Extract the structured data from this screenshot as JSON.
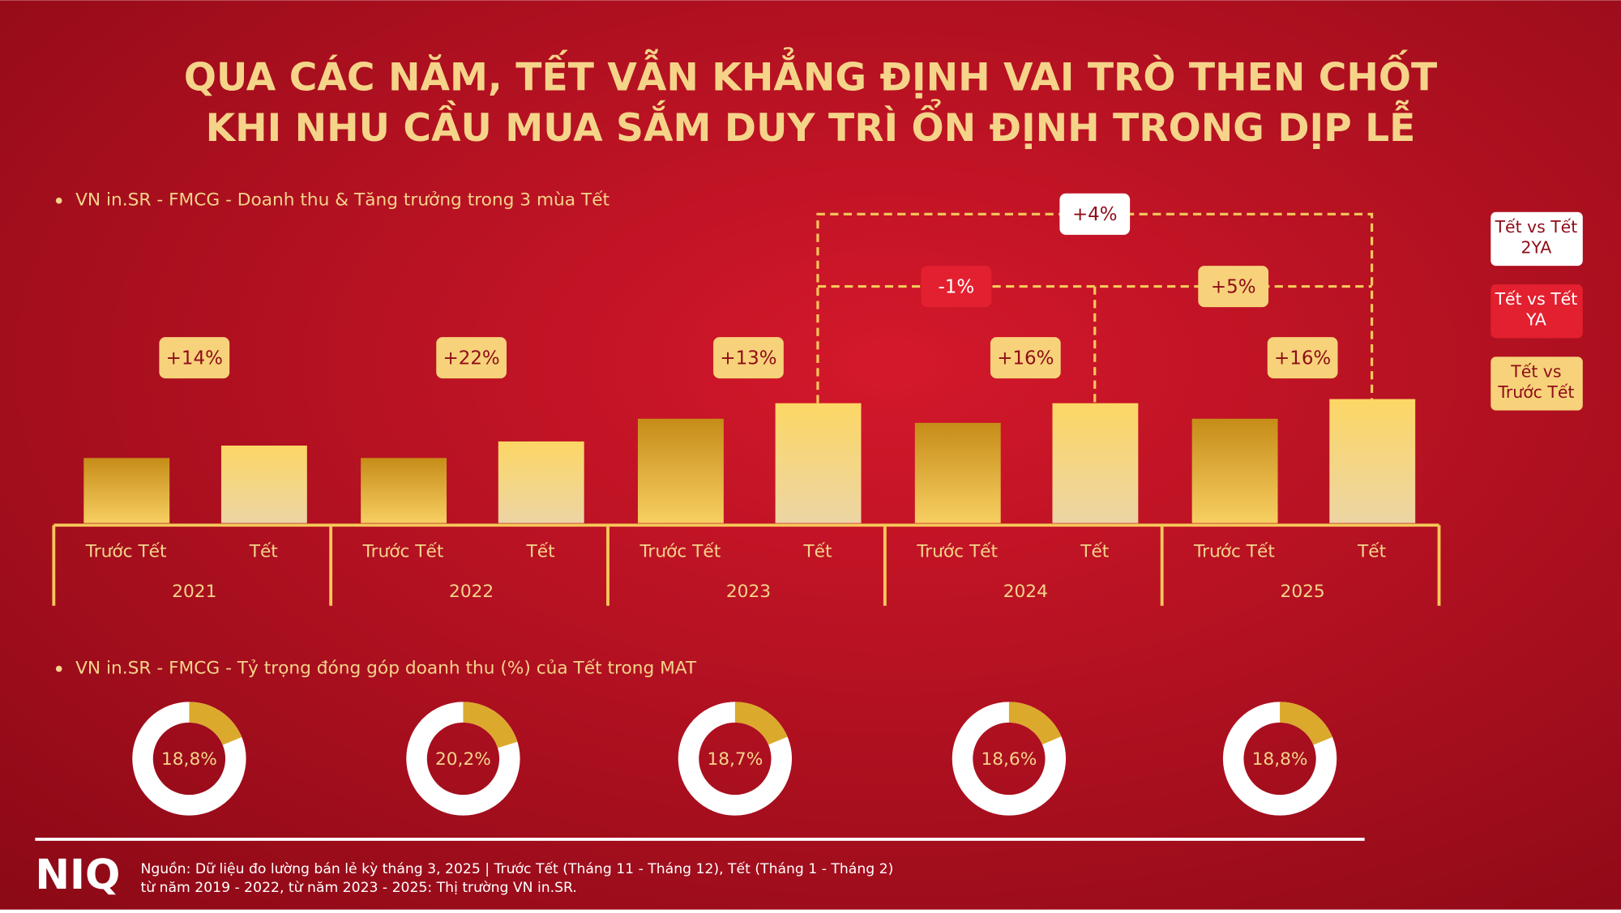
{
  "title": [
    "QUA CÁC NĂM, TẾT VẪN KHẲNG ĐỊNH VAI TRÒ THEN CHỐT",
    "KHI NHU CẦU MUA SẮM DUY TRÌ ỔN ĐỊNH TRONG DỊP LỄ"
  ],
  "chart_data": [
    {
      "type": "bar",
      "title": "VN in.SR - FMCG - Doanh thu & Tăng trưởng trong 3 mùa Tết",
      "groups": [
        {
          "year": "2021",
          "categories": [
            "Trước Tết",
            "Tết"
          ],
          "values": [
            63,
            75
          ],
          "growth": {
            "value": 14,
            "label": "+14%"
          }
        },
        {
          "year": "2022",
          "categories": [
            "Trước Tết",
            "Tết"
          ],
          "values": [
            63,
            79
          ],
          "growth": {
            "value": 22,
            "label": "+22%"
          }
        },
        {
          "year": "2023",
          "categories": [
            "Trước Tết",
            "Tết"
          ],
          "values": [
            101,
            116
          ],
          "growth": {
            "value": 13,
            "label": "+13%"
          }
        },
        {
          "year": "2024",
          "categories": [
            "Trước Tết",
            "Tết"
          ],
          "values": [
            97,
            116
          ],
          "growth": {
            "value": 16,
            "label": "+16%"
          }
        },
        {
          "year": "2025",
          "categories": [
            "Trước Tết",
            "Tết"
          ],
          "values": [
            101,
            120
          ],
          "growth": {
            "value": 16,
            "label": "+16%"
          }
        }
      ],
      "comparisons": [
        {
          "value": 4,
          "label": "+4%"
        },
        {
          "value": -1,
          "label": "-1%"
        },
        {
          "value": 5,
          "label": "+5%"
        }
      ],
      "legend": [
        {
          "label": [
            "Tết vs Tết",
            "2YA"
          ],
          "color": "#ffffff"
        },
        {
          "label": [
            "Tết vs Tết",
            "YA"
          ],
          "color": "#e3202f"
        },
        {
          "label": [
            "Tết vs",
            "Trước Tết"
          ],
          "color": "#f7d27a"
        }
      ]
    },
    {
      "type": "donut",
      "title": "VN in.SR - FMCG - Tỷ trọng đóng góp doanh thu (%) của Tết trong MAT",
      "values": [
        18.8,
        20.2,
        18.7,
        18.6,
        18.8
      ],
      "value_labels": [
        "18,8%",
        "20,2%",
        "18,7%",
        "18,6%",
        "18,8%"
      ],
      "color": "#dba92c"
    }
  ],
  "footer": {
    "logo": "NIQ",
    "source": [
      "Nguồn: Dữ liệu đo lường bán lẻ kỳ tháng 3, 2025 | Trước Tết (Tháng 11 - Tháng 12), Tết (Tháng 1 - Tháng 2)",
      "từ năm 2019 - 2022, từ năm 2023 - 2025: Thị trường VN in.SR."
    ]
  }
}
